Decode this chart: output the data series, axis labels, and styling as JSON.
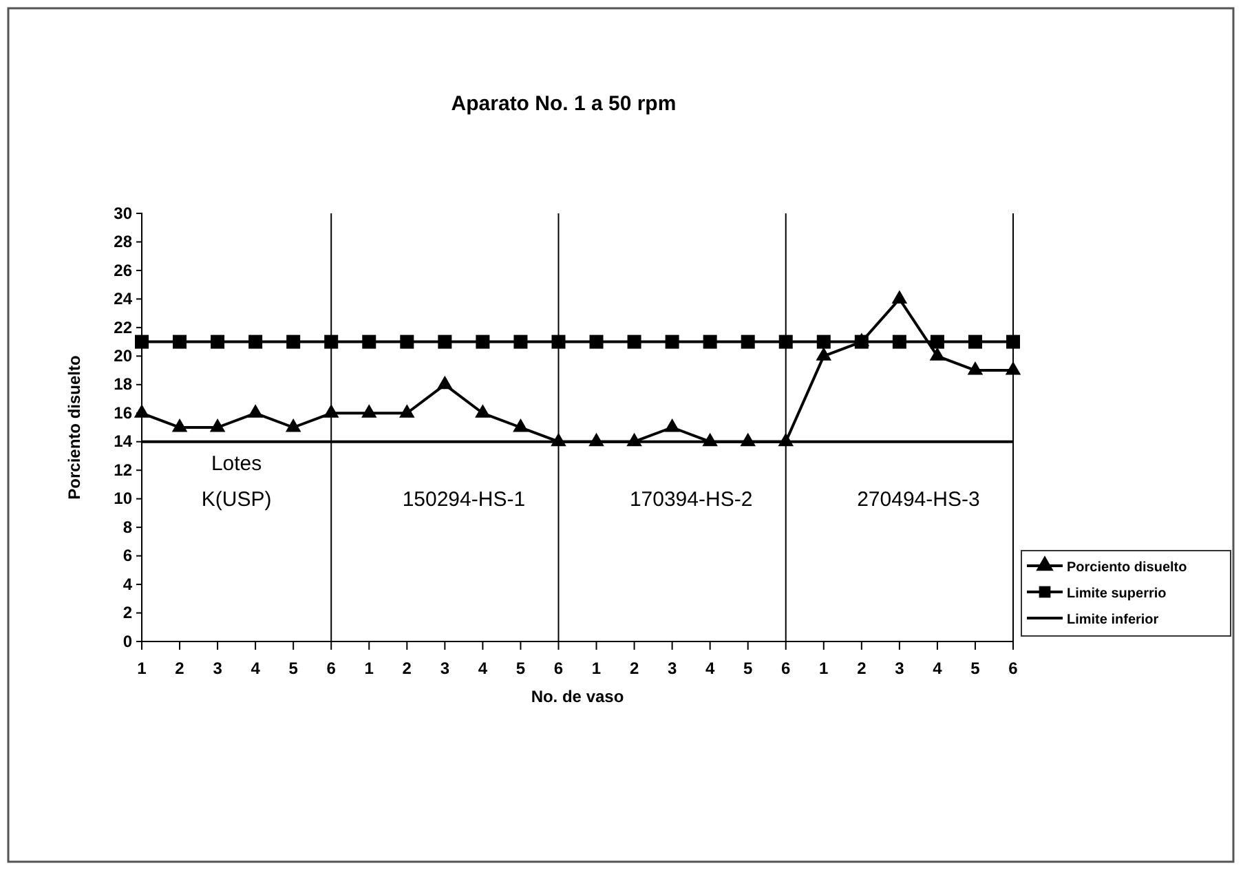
{
  "chart_data": {
    "type": "line",
    "title": "Aparato No. 1 a 50 rpm",
    "xlabel": "No. de vaso",
    "ylabel": "Porciento disuelto",
    "categories": [
      "1",
      "2",
      "3",
      "4",
      "5",
      "6",
      "1",
      "2",
      "3",
      "4",
      "5",
      "6",
      "1",
      "2",
      "3",
      "4",
      "5",
      "6",
      "1",
      "2",
      "3",
      "4",
      "5",
      "6"
    ],
    "ylim": [
      0,
      30
    ],
    "yticks": [
      0,
      2,
      4,
      6,
      8,
      10,
      12,
      14,
      16,
      18,
      20,
      22,
      24,
      26,
      28,
      30
    ],
    "series": [
      {
        "name": "Porciento disuelto",
        "color": "#000000",
        "marker": "triangle",
        "values": [
          16,
          15,
          15,
          16,
          15,
          16,
          16,
          16,
          18,
          16,
          15,
          14,
          14,
          14,
          15,
          14,
          14,
          14,
          20,
          21,
          24,
          20,
          19,
          19
        ]
      },
      {
        "name": "Limite superrio",
        "color": "#000000",
        "marker": "square",
        "values": [
          21,
          21,
          21,
          21,
          21,
          21,
          21,
          21,
          21,
          21,
          21,
          21,
          21,
          21,
          21,
          21,
          21,
          21,
          21,
          21,
          21,
          21,
          21,
          21
        ]
      },
      {
        "name": "Limite inferior",
        "color": "#000000",
        "marker": "none",
        "values": [
          14,
          14,
          14,
          14,
          14,
          14,
          14,
          14,
          14,
          14,
          14,
          14,
          14,
          14,
          14,
          14,
          14,
          14,
          14,
          14,
          14,
          14,
          14,
          14
        ]
      }
    ],
    "annotations": [
      "Lotes",
      "K(USP)",
      "150294-HS-1",
      "170394-HS-2",
      "270494-HS-3"
    ],
    "grid": false,
    "legend": "bottom right"
  }
}
